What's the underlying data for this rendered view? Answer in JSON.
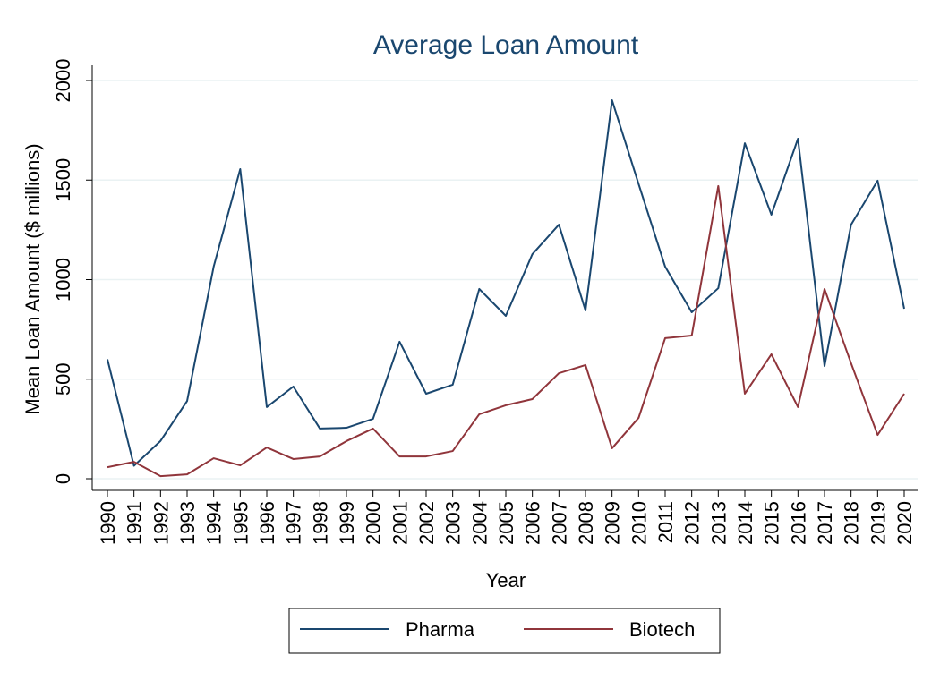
{
  "chart_data": {
    "type": "line",
    "title": "Average Loan Amount",
    "xlabel": "Year",
    "ylabel": "Mean Loan Amount ($ millions)",
    "x": [
      1990,
      1991,
      1992,
      1993,
      1994,
      1995,
      1996,
      1997,
      1998,
      1999,
      2000,
      2001,
      2002,
      2003,
      2004,
      2005,
      2006,
      2007,
      2008,
      2009,
      2010,
      2011,
      2012,
      2013,
      2014,
      2015,
      2016,
      2017,
      2018,
      2019,
      2020
    ],
    "series": [
      {
        "name": "Pharma",
        "color": "#1a476f",
        "values": [
          600,
          65,
          190,
          390,
          1065,
          1555,
          360,
          463,
          252,
          256,
          301,
          688,
          427,
          472,
          953,
          818,
          1128,
          1276,
          845,
          1901,
          1480,
          1065,
          836,
          957,
          1685,
          1326,
          1708,
          566,
          1276,
          1497,
          854
        ]
      },
      {
        "name": "Biotech",
        "color": "#90353b",
        "values": [
          58,
          85,
          13,
          22,
          103,
          67,
          157,
          99,
          112,
          189,
          252,
          112,
          112,
          139,
          324,
          369,
          400,
          530,
          571,
          153,
          306,
          706,
          719,
          1470,
          427,
          625,
          360,
          953,
          580,
          220,
          427
        ]
      }
    ],
    "xlim": [
      1990,
      2020
    ],
    "xticks": [
      1990,
      1991,
      1992,
      1993,
      1994,
      1995,
      1996,
      1997,
      1998,
      1999,
      2000,
      2001,
      2002,
      2003,
      2004,
      2005,
      2006,
      2007,
      2008,
      2009,
      2010,
      2011,
      2012,
      2013,
      2014,
      2015,
      2016,
      2017,
      2018,
      2019,
      2020
    ],
    "ylim": [
      0,
      2000
    ],
    "yticks": [
      0,
      500,
      1000,
      1500,
      2000
    ],
    "grid": true,
    "legend": "bottom"
  }
}
